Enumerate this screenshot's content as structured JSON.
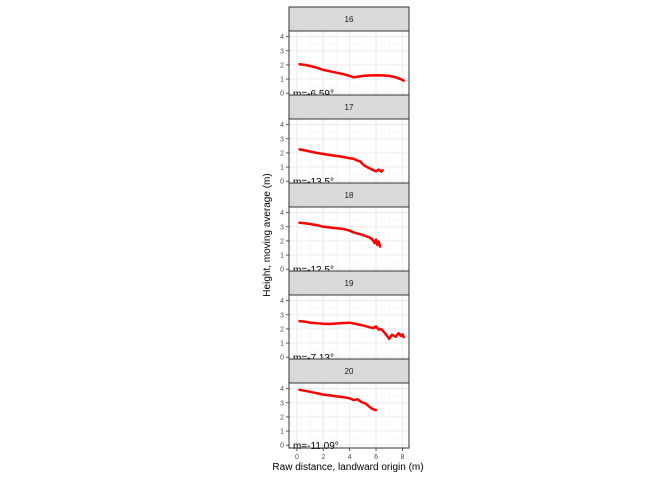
{
  "chart_data": {
    "type": "line",
    "xlabel": "Raw distance, landward origin (m)",
    "ylabel": "Height, moving average (m)",
    "xlim": [
      -0.6,
      8.5
    ],
    "ylim": [
      -0.2,
      4.4
    ],
    "x_ticks": [
      0,
      2,
      4,
      6,
      8
    ],
    "y_ticks": [
      0,
      1,
      2,
      3,
      4
    ],
    "grid": true,
    "line_color": "#ff0000",
    "panels": [
      {
        "strip": "16",
        "annotation": "m=-6.59°",
        "x": [
          0.2,
          0.6,
          1.0,
          1.5,
          2.0,
          2.5,
          3.0,
          3.5,
          4.0,
          4.3,
          4.7,
          5.0,
          5.5,
          6.0,
          6.5,
          7.0,
          7.5,
          7.9,
          8.1
        ],
        "y": [
          2.05,
          2.0,
          1.92,
          1.8,
          1.65,
          1.55,
          1.45,
          1.35,
          1.22,
          1.12,
          1.18,
          1.22,
          1.25,
          1.27,
          1.26,
          1.22,
          1.12,
          0.98,
          0.88
        ]
      },
      {
        "strip": "17",
        "annotation": "m=-13.5°",
        "x": [
          0.2,
          0.6,
          1.0,
          1.5,
          2.0,
          2.5,
          3.0,
          3.5,
          4.0,
          4.3,
          4.6,
          4.8,
          5.0,
          5.2,
          5.5,
          5.8,
          6.0,
          6.2,
          6.4,
          6.5
        ],
        "y": [
          2.25,
          2.18,
          2.1,
          2.0,
          1.92,
          1.85,
          1.78,
          1.72,
          1.62,
          1.58,
          1.45,
          1.4,
          1.2,
          1.05,
          0.92,
          0.78,
          0.7,
          0.82,
          0.68,
          0.78
        ]
      },
      {
        "strip": "18",
        "annotation": "m=-12.5°",
        "x": [
          0.2,
          0.6,
          1.0,
          1.5,
          2.0,
          2.5,
          3.0,
          3.5,
          4.0,
          4.3,
          4.6,
          4.9,
          5.2,
          5.5,
          5.7,
          5.9,
          6.0,
          6.1,
          6.2,
          6.3
        ],
        "y": [
          3.28,
          3.25,
          3.2,
          3.12,
          3.0,
          2.95,
          2.9,
          2.85,
          2.72,
          2.6,
          2.52,
          2.45,
          2.35,
          2.25,
          2.12,
          1.85,
          2.1,
          1.72,
          1.95,
          1.6
        ]
      },
      {
        "strip": "19",
        "annotation": "m=-7.13°",
        "x": [
          0.2,
          0.6,
          1.0,
          1.5,
          2.0,
          2.5,
          3.0,
          3.5,
          4.0,
          4.5,
          5.0,
          5.5,
          5.8,
          6.0,
          6.2,
          6.4,
          6.6,
          6.8,
          7.0,
          7.2,
          7.5,
          7.7,
          7.9,
          8.0,
          8.1
        ],
        "y": [
          2.55,
          2.52,
          2.45,
          2.4,
          2.36,
          2.35,
          2.38,
          2.42,
          2.44,
          2.35,
          2.25,
          2.12,
          2.05,
          2.18,
          1.95,
          1.98,
          1.78,
          1.55,
          1.3,
          1.58,
          1.45,
          1.7,
          1.5,
          1.62,
          1.42
        ]
      },
      {
        "strip": "20",
        "annotation": "m=-11.09°",
        "x": [
          0.2,
          0.6,
          1.0,
          1.5,
          2.0,
          2.5,
          3.0,
          3.5,
          4.0,
          4.3,
          4.6,
          4.9,
          5.2,
          5.5,
          5.7,
          5.9,
          6.0
        ],
        "y": [
          3.92,
          3.85,
          3.78,
          3.68,
          3.58,
          3.52,
          3.45,
          3.4,
          3.32,
          3.2,
          3.25,
          3.05,
          2.95,
          2.72,
          2.58,
          2.5,
          2.48
        ]
      }
    ]
  }
}
